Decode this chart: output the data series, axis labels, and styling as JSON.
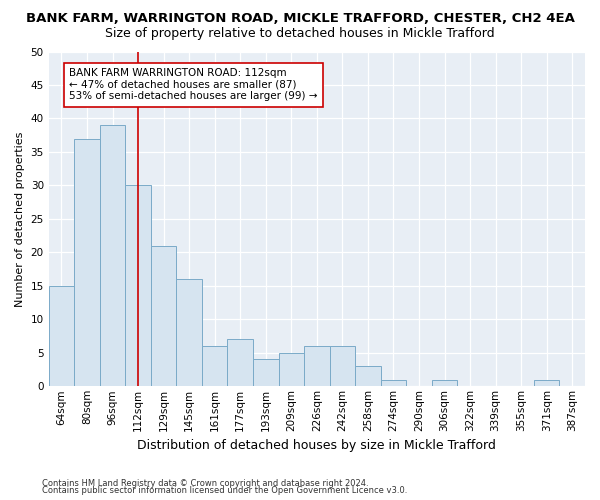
{
  "title1": "BANK FARM, WARRINGTON ROAD, MICKLE TRAFFORD, CHESTER, CH2 4EA",
  "title2": "Size of property relative to detached houses in Mickle Trafford",
  "xlabel": "Distribution of detached houses by size in Mickle Trafford",
  "ylabel": "Number of detached properties",
  "footnote1": "Contains HM Land Registry data © Crown copyright and database right 2024.",
  "footnote2": "Contains public sector information licensed under the Open Government Licence v3.0.",
  "bar_labels": [
    "64sqm",
    "80sqm",
    "96sqm",
    "112sqm",
    "129sqm",
    "145sqm",
    "161sqm",
    "177sqm",
    "193sqm",
    "209sqm",
    "226sqm",
    "242sqm",
    "258sqm",
    "274sqm",
    "290sqm",
    "306sqm",
    "322sqm",
    "339sqm",
    "355sqm",
    "371sqm",
    "387sqm"
  ],
  "bar_values": [
    15,
    37,
    39,
    30,
    21,
    16,
    6,
    7,
    4,
    5,
    6,
    6,
    3,
    1,
    0,
    1,
    0,
    0,
    0,
    1,
    0
  ],
  "bar_color": "#d6e4f0",
  "bar_edge_color": "#7aaac8",
  "annotation_text": "BANK FARM WARRINGTON ROAD: 112sqm\n← 47% of detached houses are smaller (87)\n53% of semi-detached houses are larger (99) →",
  "vline_x_index": 3,
  "vline_color": "#cc0000",
  "annotation_box_facecolor": "#ffffff",
  "annotation_box_edgecolor": "#cc0000",
  "ylim": [
    0,
    50
  ],
  "yticks": [
    0,
    5,
    10,
    15,
    20,
    25,
    30,
    35,
    40,
    45,
    50
  ],
  "bg_color": "#e8eef5",
  "grid_color": "#ffffff",
  "fig_facecolor": "#ffffff",
  "title1_fontsize": 9.5,
  "title2_fontsize": 9,
  "xlabel_fontsize": 9,
  "ylabel_fontsize": 8,
  "tick_fontsize": 7.5,
  "annotation_fontsize": 7.5,
  "footnote_fontsize": 6
}
